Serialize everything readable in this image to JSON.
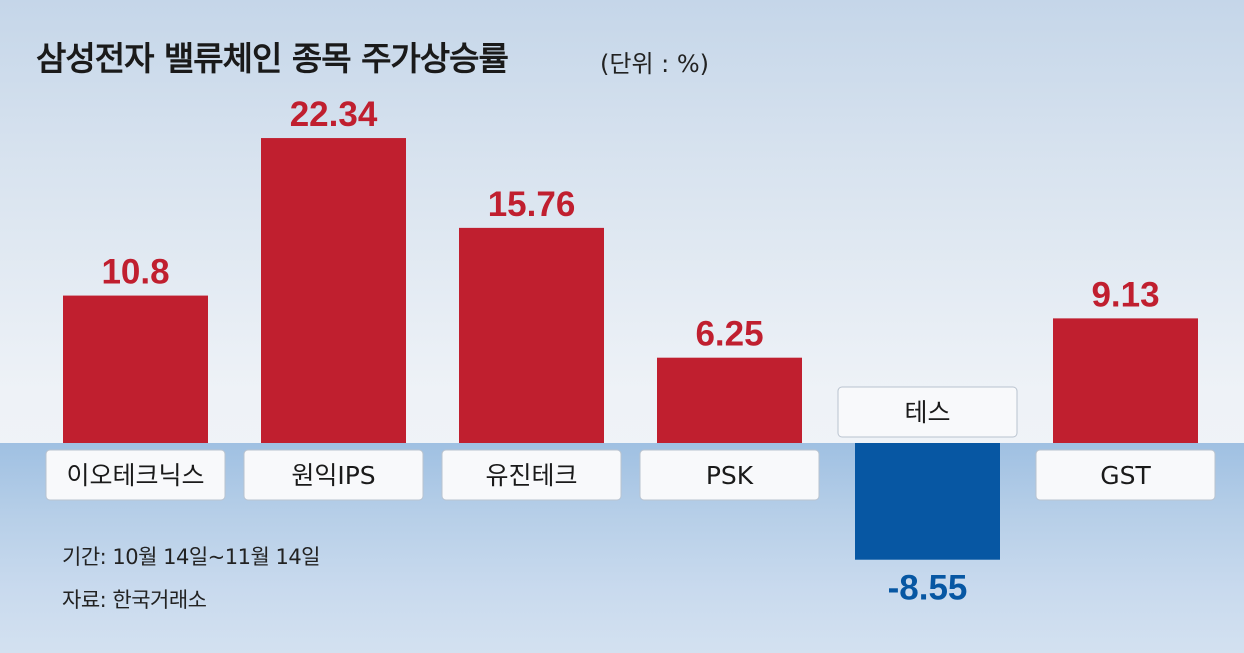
{
  "header": {
    "title": "삼성전자 밸류체인 종목 주가상승률",
    "unit": "(단위 : %)"
  },
  "notes": {
    "period": "기간: 10월 14일~11월 14일",
    "source": "자료: 한국거래소"
  },
  "colors": {
    "positive": "#c01f2f",
    "negative": "#0757a3",
    "label_box_bg": "#f8f9fb",
    "label_box_border": "#b9c3cf"
  },
  "chart_data": {
    "type": "bar",
    "title": "삼성전자 밸류체인 종목 주가상승률",
    "unit": "(단위 : %)",
    "categories": [
      "이오테크닉스",
      "원익IPS",
      "유진테크",
      "PSK",
      "테스",
      "GST"
    ],
    "values": [
      10.8,
      22.34,
      15.76,
      6.25,
      -8.55,
      9.13
    ],
    "value_labels": [
      "10.8",
      "22.34",
      "15.76",
      "6.25",
      "-8.55",
      "9.13"
    ],
    "ylim": [
      -10,
      24
    ],
    "grid": false,
    "legend": "none"
  }
}
